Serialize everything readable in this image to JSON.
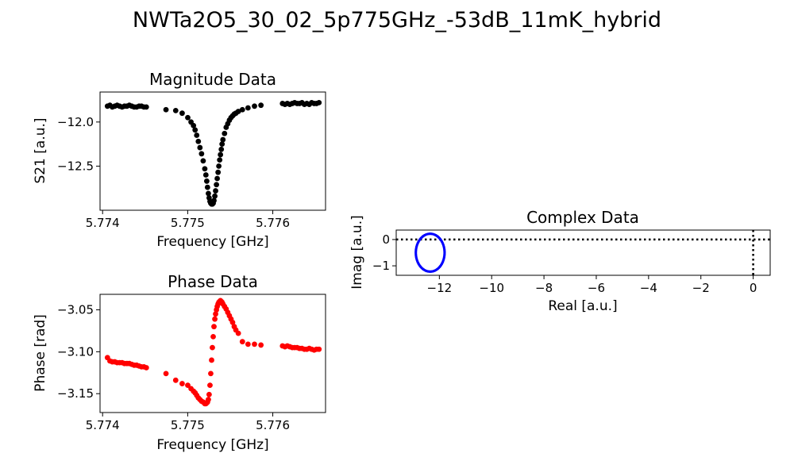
{
  "figure_title": "NWTa2O5_30_02_5p775GHz_-53dB_11mK_hybrid",
  "chart_data": [
    {
      "id": "magnitude",
      "type": "scatter",
      "title": "Magnitude Data",
      "xlabel": "Frequency [GHz]",
      "ylabel": "S21 [a.u.]",
      "xlim": [
        5.77397,
        5.77662
      ],
      "ylim": [
        -13.0,
        -11.66
      ],
      "xticks": [
        5.774,
        5.775,
        5.776
      ],
      "xtick_labels": [
        "5.774",
        "5.775",
        "5.776"
      ],
      "yticks": [
        -12.0,
        -12.5
      ],
      "ytick_labels": [
        "−12.0",
        "−12.5"
      ],
      "color": "#000000",
      "grid": false,
      "x": [
        5.774057,
        5.774086,
        5.774114,
        5.774143,
        5.774171,
        5.7742,
        5.774229,
        5.774257,
        5.774286,
        5.774314,
        5.774343,
        5.774371,
        5.7744,
        5.774429,
        5.774457,
        5.774486,
        5.774514,
        5.774745,
        5.774859,
        5.774935,
        5.775001,
        5.775039,
        5.775068,
        5.775087,
        5.775106,
        5.775125,
        5.775144,
        5.775163,
        5.775182,
        5.775201,
        5.775214,
        5.775224,
        5.775233,
        5.775243,
        5.775252,
        5.775262,
        5.775271,
        5.775281,
        5.77529,
        5.7753,
        5.775309,
        5.775319,
        5.775328,
        5.775338,
        5.775347,
        5.775357,
        5.775366,
        5.775376,
        5.775385,
        5.775395,
        5.775404,
        5.775414,
        5.775433,
        5.775452,
        5.775471,
        5.77549,
        5.775509,
        5.775528,
        5.775547,
        5.775566,
        5.775595,
        5.775643,
        5.775709,
        5.775785,
        5.775861,
        5.776114,
        5.776143,
        5.776171,
        5.7762,
        5.776229,
        5.776257,
        5.776286,
        5.776314,
        5.776343,
        5.776371,
        5.7764,
        5.776429,
        5.776457,
        5.776486,
        5.776514,
        5.776543
      ],
      "y": [
        -11.82,
        -11.81,
        -11.83,
        -11.82,
        -11.81,
        -11.82,
        -11.83,
        -11.82,
        -11.82,
        -11.81,
        -11.82,
        -11.83,
        -11.83,
        -11.82,
        -11.82,
        -11.83,
        -11.83,
        -11.86,
        -11.87,
        -11.9,
        -11.95,
        -12.0,
        -12.04,
        -12.09,
        -12.15,
        -12.22,
        -12.29,
        -12.36,
        -12.44,
        -12.53,
        -12.6,
        -12.67,
        -12.74,
        -12.81,
        -12.86,
        -12.9,
        -12.92,
        -12.93,
        -12.93,
        -12.92,
        -12.89,
        -12.84,
        -12.78,
        -12.71,
        -12.64,
        -12.57,
        -12.5,
        -12.43,
        -12.37,
        -12.31,
        -12.25,
        -12.2,
        -12.13,
        -12.06,
        -12.02,
        -11.98,
        -11.95,
        -11.93,
        -11.91,
        -11.9,
        -11.88,
        -11.86,
        -11.84,
        -11.82,
        -11.81,
        -11.79,
        -11.8,
        -11.79,
        -11.8,
        -11.79,
        -11.78,
        -11.79,
        -11.79,
        -11.78,
        -11.8,
        -11.79,
        -11.8,
        -11.78,
        -11.79,
        -11.79,
        -11.78
      ]
    },
    {
      "id": "phase",
      "type": "scatter",
      "title": "Phase Data",
      "xlabel": "Frequency [GHz]",
      "ylabel": "Phase [rad]",
      "xlim": [
        5.77397,
        5.77662
      ],
      "ylim": [
        -3.1725,
        -3.0315
      ],
      "xticks": [
        5.774,
        5.775,
        5.776
      ],
      "xtick_labels": [
        "5.774",
        "5.775",
        "5.776"
      ],
      "yticks": [
        -3.05,
        -3.1,
        -3.15
      ],
      "ytick_labels": [
        "−3.05",
        "−3.10",
        "−3.15"
      ],
      "color": "#ff0000",
      "grid": false,
      "x": [
        5.774057,
        5.774086,
        5.774114,
        5.774143,
        5.774171,
        5.7742,
        5.774229,
        5.774257,
        5.774286,
        5.774314,
        5.774343,
        5.774371,
        5.7744,
        5.774429,
        5.774457,
        5.774486,
        5.774514,
        5.774745,
        5.774859,
        5.774935,
        5.775001,
        5.775039,
        5.775068,
        5.775087,
        5.775106,
        5.775125,
        5.775144,
        5.775163,
        5.775182,
        5.775201,
        5.775214,
        5.775224,
        5.775233,
        5.775243,
        5.775252,
        5.775262,
        5.775271,
        5.775281,
        5.77529,
        5.7753,
        5.775309,
        5.775319,
        5.775328,
        5.775338,
        5.775347,
        5.775357,
        5.775366,
        5.775376,
        5.775385,
        5.775395,
        5.775404,
        5.775414,
        5.775433,
        5.775452,
        5.775471,
        5.77549,
        5.775509,
        5.775528,
        5.775547,
        5.775566,
        5.775595,
        5.775643,
        5.775709,
        5.775785,
        5.775861,
        5.776114,
        5.776143,
        5.776171,
        5.7762,
        5.776229,
        5.776257,
        5.776286,
        5.776314,
        5.776343,
        5.776371,
        5.7764,
        5.776429,
        5.776457,
        5.776486,
        5.776514,
        5.776543
      ],
      "y": [
        -3.107,
        -3.111,
        -3.112,
        -3.112,
        -3.113,
        -3.113,
        -3.113,
        -3.114,
        -3.114,
        -3.114,
        -3.115,
        -3.116,
        -3.116,
        -3.117,
        -3.118,
        -3.118,
        -3.119,
        -3.126,
        -3.134,
        -3.138,
        -3.14,
        -3.144,
        -3.147,
        -3.149,
        -3.152,
        -3.155,
        -3.157,
        -3.159,
        -3.16,
        -3.162,
        -3.162,
        -3.161,
        -3.16,
        -3.157,
        -3.151,
        -3.14,
        -3.126,
        -3.11,
        -3.095,
        -3.082,
        -3.07,
        -3.061,
        -3.055,
        -3.05,
        -3.046,
        -3.043,
        -3.041,
        -3.04,
        -3.039,
        -3.04,
        -3.041,
        -3.043,
        -3.046,
        -3.049,
        -3.053,
        -3.057,
        -3.061,
        -3.065,
        -3.07,
        -3.074,
        -3.078,
        -3.088,
        -3.091,
        -3.091,
        -3.092,
        -3.093,
        -3.094,
        -3.093,
        -3.094,
        -3.095,
        -3.095,
        -3.095,
        -3.096,
        -3.096,
        -3.097,
        -3.097,
        -3.096,
        -3.097,
        -3.098,
        -3.097,
        -3.097
      ]
    },
    {
      "id": "complex",
      "type": "scatter",
      "title": "Complex Data",
      "xlabel": "Real [a.u.]",
      "ylabel": "Imag [a.u.]",
      "xlim": [
        -13.65,
        0.65
      ],
      "ylim": [
        -1.36,
        0.36
      ],
      "xticks": [
        -12,
        -10,
        -8,
        -6,
        -4,
        -2,
        0
      ],
      "xtick_labels": [
        "−12",
        "−10",
        "−8",
        "−6",
        "−4",
        "−2",
        "0"
      ],
      "yticks": [
        0,
        -1
      ],
      "ytick_labels": [
        "0",
        "−1"
      ],
      "color": "#0000ff",
      "grid": false,
      "reference_lines": {
        "x": 0,
        "y": 0,
        "style": "dotted",
        "color": "#000000"
      },
      "resonance_circle": {
        "center": [
          -12.35,
          -0.5
        ],
        "radius_real": 0.55,
        "radius_imag": 0.72,
        "points": 80
      }
    }
  ]
}
